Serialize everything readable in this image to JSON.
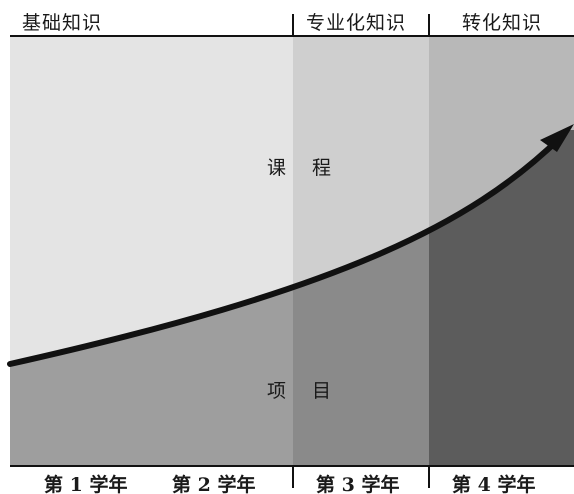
{
  "phases": [
    {
      "label": "基础知识"
    },
    {
      "label": "专业化知识"
    },
    {
      "label": "转化知识"
    }
  ],
  "years": [
    {
      "label": "第 1 学年"
    },
    {
      "label": "第 2 学年"
    },
    {
      "label": "第 3 学年"
    },
    {
      "label": "第 4 学年"
    }
  ],
  "regions": {
    "upper": "课 程",
    "lower": "项 目"
  },
  "colors": {
    "upper_phase1": "#e4e4e4",
    "upper_phase2": "#cfcfcf",
    "upper_phase3": "#b8b8b8",
    "lower_phase1": "#9e9e9e",
    "lower_phase2": "#8a8a8a",
    "lower_phase3": "#5c5c5c",
    "arrow": "#111111"
  }
}
